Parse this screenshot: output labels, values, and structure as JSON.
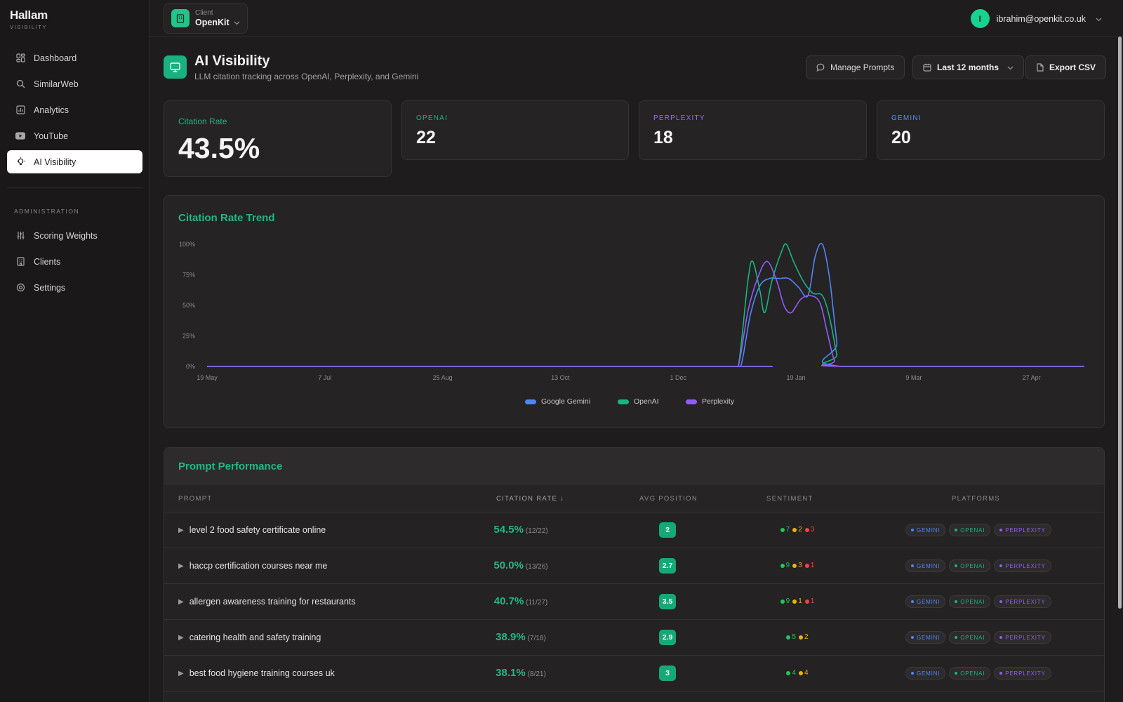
{
  "brand": {
    "name": "Hallam",
    "sub": "VISIBILITY"
  },
  "sidebar": {
    "items": [
      {
        "label": "Dashboard",
        "icon": "dashboard-icon"
      },
      {
        "label": "SimilarWeb",
        "icon": "search-icon"
      },
      {
        "label": "Analytics",
        "icon": "chart-icon"
      },
      {
        "label": "YouTube",
        "icon": "youtube-icon"
      },
      {
        "label": "AI Visibility",
        "icon": "lightbulb-icon",
        "active": true
      }
    ],
    "section_label": "ADMINISTRATION",
    "admin_items": [
      {
        "label": "Scoring Weights",
        "icon": "sliders-icon"
      },
      {
        "label": "Clients",
        "icon": "building-icon"
      },
      {
        "label": "Settings",
        "icon": "gear-icon"
      }
    ]
  },
  "topbar": {
    "client_label": "Client",
    "client_value": "OpenKit",
    "user_initial": "I",
    "user_email": "ibrahim@openkit.co.uk"
  },
  "header": {
    "title": "AI Visibility",
    "subtitle": "LLM citation tracking across OpenAI, Perplexity, and Gemini",
    "manage_prompts": "Manage Prompts",
    "date_range": "Last 12 months",
    "export": "Export CSV"
  },
  "kpis": {
    "citation_rate_label": "Citation Rate",
    "citation_rate_value": "43.5%",
    "openai_label": "OPENAI",
    "openai_value": "22",
    "perplexity_label": "PERPLEXITY",
    "perplexity_value": "18",
    "gemini_label": "GEMINI",
    "gemini_value": "20"
  },
  "colors": {
    "accent": "#1fb885",
    "gemini": "#4f86f7",
    "openai": "#17b581",
    "perplexity": "#8f5cf6",
    "positive": "#22c55e",
    "neutral": "#eab308",
    "negative": "#ef4444"
  },
  "chart_data": {
    "type": "line",
    "title": "Citation Rate Trend",
    "x_ticks": [
      "19 May",
      "7 Jul",
      "25 Aug",
      "13 Oct",
      "1 Dec",
      "19 Jan",
      "9 Mar",
      "27 Apr"
    ],
    "y_ticks": [
      "100%",
      "75%",
      "50%",
      "25%",
      "0%"
    ],
    "ylim": [
      0,
      100
    ],
    "x_domain_days": [
      0,
      365
    ],
    "x_tick_days": [
      0,
      49,
      98,
      147,
      196,
      245,
      294,
      343
    ],
    "grid": false,
    "legend_position": "bottom-center",
    "series": [
      {
        "name": "Google Gemini",
        "color": "#4f86f7",
        "points": [
          [
            0,
            0
          ],
          [
            218,
            0
          ],
          [
            222,
            0
          ],
          [
            226,
            42
          ],
          [
            230,
            66
          ],
          [
            234,
            72
          ],
          [
            238,
            72
          ],
          [
            242,
            72
          ],
          [
            246,
            65
          ],
          [
            250,
            58
          ],
          [
            253,
            90
          ],
          [
            256,
            100
          ],
          [
            259,
            72
          ],
          [
            262,
            20
          ],
          [
            264,
            0
          ],
          [
            365,
            0
          ]
        ]
      },
      {
        "name": "OpenAI",
        "color": "#17b581",
        "points": [
          [
            0,
            0
          ],
          [
            218,
            0
          ],
          [
            221,
            0
          ],
          [
            225,
            70
          ],
          [
            227,
            86
          ],
          [
            230,
            62
          ],
          [
            232,
            44
          ],
          [
            235,
            70
          ],
          [
            239,
            94
          ],
          [
            241,
            100
          ],
          [
            244,
            86
          ],
          [
            248,
            70
          ],
          [
            252,
            60
          ],
          [
            256,
            58
          ],
          [
            259,
            40
          ],
          [
            262,
            10
          ],
          [
            264,
            0
          ],
          [
            365,
            0
          ]
        ]
      },
      {
        "name": "Perplexity",
        "color": "#8f5cf6",
        "points": [
          [
            0,
            0
          ],
          [
            218,
            0
          ],
          [
            221,
            0
          ],
          [
            225,
            45
          ],
          [
            229,
            72
          ],
          [
            233,
            86
          ],
          [
            237,
            70
          ],
          [
            240,
            50
          ],
          [
            243,
            44
          ],
          [
            247,
            55
          ],
          [
            251,
            58
          ],
          [
            255,
            52
          ],
          [
            258,
            28
          ],
          [
            261,
            5
          ],
          [
            264,
            0
          ],
          [
            365,
            0
          ]
        ]
      }
    ]
  },
  "table": {
    "title": "Prompt Performance",
    "headers": {
      "prompt": "PROMPT",
      "rate": "CITATION RATE ↓",
      "position": "AVG POSITION",
      "sentiment": "SENTIMENT",
      "platforms": "PLATFORMS"
    },
    "platform_chips": [
      "GEMINI",
      "OPENAI",
      "PERPLEXITY"
    ],
    "rows": [
      {
        "prompt": "level 2 food safety certificate online",
        "rate": "54.5%",
        "frac": "(12/22)",
        "position": "2",
        "pos": "7",
        "neu": "2",
        "neg": "3"
      },
      {
        "prompt": "haccp certification courses near me",
        "rate": "50.0%",
        "frac": "(13/26)",
        "position": "2.7",
        "pos": "9",
        "neu": "3",
        "neg": "1"
      },
      {
        "prompt": "allergen awareness training for restaurants",
        "rate": "40.7%",
        "frac": "(11/27)",
        "position": "3.5",
        "pos": "9",
        "neu": "1",
        "neg": "1"
      },
      {
        "prompt": "catering health and safety training",
        "rate": "38.9%",
        "frac": "(7/18)",
        "position": "2.9",
        "pos": "5",
        "neu": "2",
        "neg": ""
      },
      {
        "prompt": "best food hygiene training courses uk",
        "rate": "38.1%",
        "frac": "(8/21)",
        "position": "3",
        "pos": "4",
        "neu": "4",
        "neg": ""
      }
    ]
  }
}
